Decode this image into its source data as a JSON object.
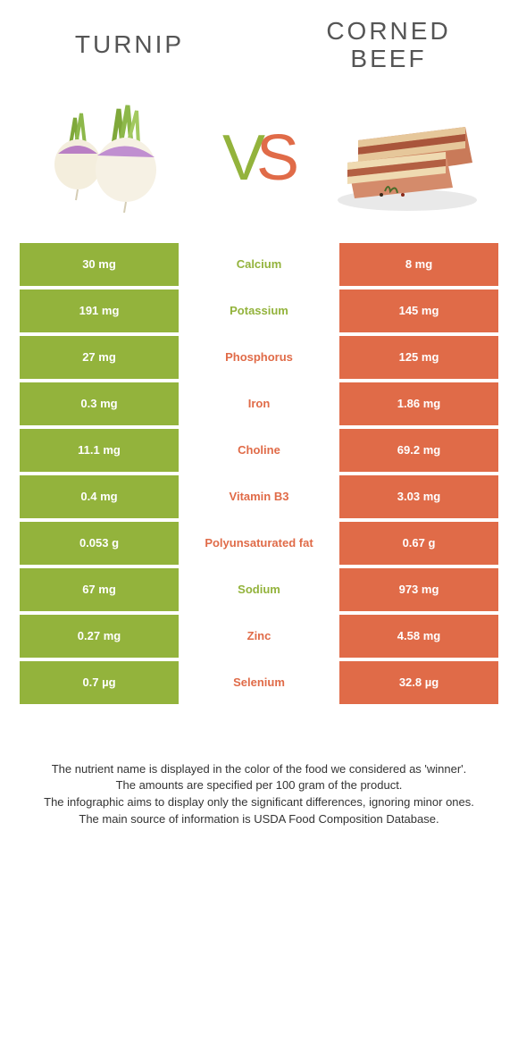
{
  "colors": {
    "green": "#93b33c",
    "orange": "#e06b48",
    "text": "#555555",
    "label_green": "#93b33c",
    "label_orange": "#e06b48",
    "row_bg": "#ffffff"
  },
  "header": {
    "left": "Turnip",
    "right": "Corned\nbeef"
  },
  "vs": {
    "v": "V",
    "s": "S"
  },
  "rows": [
    {
      "label": "Calcium",
      "left": "30 mg",
      "right": "8 mg",
      "winner": "left"
    },
    {
      "label": "Potassium",
      "left": "191 mg",
      "right": "145 mg",
      "winner": "left"
    },
    {
      "label": "Phosphorus",
      "left": "27 mg",
      "right": "125 mg",
      "winner": "right"
    },
    {
      "label": "Iron",
      "left": "0.3 mg",
      "right": "1.86 mg",
      "winner": "right"
    },
    {
      "label": "Choline",
      "left": "11.1 mg",
      "right": "69.2 mg",
      "winner": "right"
    },
    {
      "label": "Vitamin B3",
      "left": "0.4 mg",
      "right": "3.03 mg",
      "winner": "right"
    },
    {
      "label": "Polyunsaturated fat",
      "left": "0.053 g",
      "right": "0.67 g",
      "winner": "right"
    },
    {
      "label": "Sodium",
      "left": "67 mg",
      "right": "973 mg",
      "winner": "left"
    },
    {
      "label": "Zinc",
      "left": "0.27 mg",
      "right": "4.58 mg",
      "winner": "right"
    },
    {
      "label": "Selenium",
      "left": "0.7 µg",
      "right": "32.8 µg",
      "winner": "right"
    }
  ],
  "footnotes": [
    "The nutrient name is displayed in the color of the food we considered as 'winner'.",
    "The amounts are specified per 100 gram of the product.",
    "The infographic aims to display only the significant differences, ignoring minor ones.",
    "The main source of information is USDA Food Composition Database."
  ]
}
